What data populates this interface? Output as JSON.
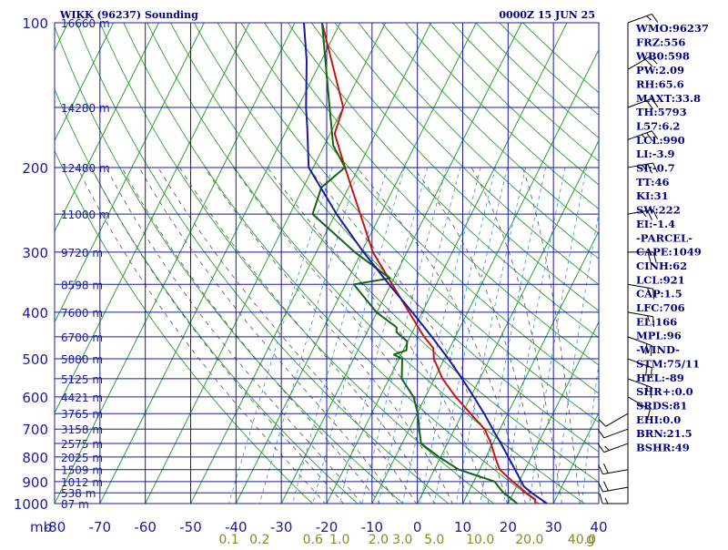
{
  "colors": {
    "grid": "#1a1aa0",
    "dry_adiabat": "#2ea02e",
    "moist_adiabat": "#555555",
    "mixing_ratio": "#3a8fe0",
    "temperature": "#c81414",
    "dewpoint": "#146414",
    "parcel": "#1a1aa0",
    "wind": "#000000",
    "text": "#000080",
    "mixing_label": "#8a8a20"
  },
  "header": {
    "title": "WIKK (96237) Sounding",
    "time": "0000Z 15 JUN 25"
  },
  "indices": [
    "WMO:96237",
    "FRZ:556",
    "WB0:598",
    "PW:2.09",
    "RH:65.6",
    "MAXT:33.8",
    "TH:5793",
    "L57:6.2",
    "LCL:990",
    "LI:-3.9",
    "SI:-0.7",
    "TT:46",
    "KI:31",
    "SW:222",
    "EI:-1.4",
    "-PARCEL-",
    "CAPE:1049",
    "CINH:62",
    "LCL:921",
    "CAP:1.5",
    "LFC:706",
    "EL:166",
    "MPL:96",
    "-WIND-",
    "STM:75/11",
    "HEL:-89",
    "SHR+:0.0",
    "SRDS:81",
    "EHI:0.0",
    "BRN:21.5",
    "BSHR:49"
  ],
  "chart_data": {
    "type": "line",
    "title": "WIKK (96237) Sounding",
    "xlabel": "",
    "ylabel": "mb",
    "xlim": [
      -80,
      40
    ],
    "ylim": [
      1000,
      100
    ],
    "y_scale": "log-pressure",
    "grid": true,
    "temperature_ticks": [
      -80,
      -70,
      -60,
      -50,
      -40,
      -30,
      -20,
      -10,
      0,
      10,
      20,
      30,
      40
    ],
    "temperature_tick_labels": [
      "-80",
      "-70",
      "-60",
      "-50",
      "-40",
      "-30",
      "-20",
      "-10",
      "0",
      "10",
      "20",
      "30",
      "40"
    ],
    "pressure_ticks": [
      100,
      200,
      300,
      400,
      500,
      600,
      700,
      800,
      900,
      1000
    ],
    "pressure_tick_labels": [
      "100",
      "200",
      "300",
      "400",
      "500",
      "600",
      "700",
      "800",
      "900",
      "1000"
    ],
    "y_unit_label": "mb",
    "minor_pressure_lines": [
      150,
      250,
      350,
      450,
      550,
      650,
      750,
      850,
      950
    ],
    "height_labels": [
      {
        "p": 100,
        "label": "16660 m"
      },
      {
        "p": 150,
        "label": "14280 m"
      },
      {
        "p": 200,
        "label": "12480 m"
      },
      {
        "p": 250,
        "label": "11000 m"
      },
      {
        "p": 300,
        "label": "9720 m"
      },
      {
        "p": 350,
        "label": "8598 m"
      },
      {
        "p": 400,
        "label": "7600 m"
      },
      {
        "p": 450,
        "label": "6700 m"
      },
      {
        "p": 500,
        "label": "5880 m"
      },
      {
        "p": 550,
        "label": "5125 m"
      },
      {
        "p": 600,
        "label": "4421 m"
      },
      {
        "p": 650,
        "label": "3765 m"
      },
      {
        "p": 700,
        "label": "3158 m"
      },
      {
        "p": 750,
        "label": "2575 m"
      },
      {
        "p": 800,
        "label": "2025 m"
      },
      {
        "p": 850,
        "label": "1509 m"
      },
      {
        "p": 900,
        "label": "1012 m"
      },
      {
        "p": 950,
        "label": "538 m"
      },
      {
        "p": 1000,
        "label": "87 m"
      }
    ],
    "mixing_ratio_values": [
      0.1,
      0.2,
      0.6,
      1.0,
      2.0,
      3.0,
      5.0,
      10.0,
      20.0,
      40.0
    ],
    "mixing_ratio_labels": [
      "0.1",
      "0.2",
      "0.6",
      "1.0",
      "2.0",
      "3.0",
      "5.0",
      "10.0",
      "20.0",
      "40.0"
    ],
    "mixing_ratio_unit": "g",
    "series": [
      {
        "key": "temperature",
        "p": [
          1006,
          1000,
          980,
          950,
          925,
          900,
          850,
          800,
          750,
          700,
          650,
          600,
          550,
          500,
          475,
          450,
          400,
          350,
          300,
          250,
          200,
          170,
          150,
          100
        ],
        "t": [
          25.6,
          26.0,
          25.5,
          22.8,
          20.8,
          18.6,
          14.4,
          12.0,
          9.6,
          6.6,
          1.8,
          -3.3,
          -8.2,
          -12.3,
          -13.6,
          -16.9,
          -22.9,
          -29.7,
          -37.5,
          -44.5,
          -53.0,
          -59.0,
          -60.0,
          -74.0
        ]
      },
      {
        "key": "dewpoint",
        "p": [
          1006,
          1000,
          975,
          950,
          925,
          900,
          850,
          800,
          750,
          700,
          650,
          600,
          550,
          500,
          490,
          480,
          460,
          440,
          430,
          400,
          350,
          340,
          300,
          250,
          220,
          200,
          180,
          150,
          100
        ],
        "t": [
          21.6,
          22.0,
          20.0,
          17.8,
          16.2,
          14.6,
          5.4,
          -0.4,
          -5.8,
          -7.8,
          -9.8,
          -12.6,
          -17.2,
          -19.3,
          -21.6,
          -19.3,
          -20.1,
          -23.5,
          -24.0,
          -30.1,
          -38.2,
          -30.9,
          -41.5,
          -55.0,
          -56.0,
          -53.0,
          -58.0,
          -63.0,
          -74.0
        ]
      },
      {
        "key": "parcel",
        "p": [
          1000,
          950,
          921,
          900,
          850,
          800,
          750,
          706,
          700,
          650,
          600,
          550,
          500,
          450,
          400,
          350,
          300,
          250,
          200,
          166,
          150,
          120,
          100
        ],
        "t": [
          28.6,
          24.0,
          21.6,
          20.5,
          17.8,
          14.9,
          11.8,
          8.8,
          8.4,
          4.8,
          0.7,
          -3.9,
          -9.1,
          -15.2,
          -22.2,
          -30.4,
          -39.6,
          -49.7,
          -61.0,
          -65.6,
          -68.2,
          -73.2,
          -78.0
        ]
      }
    ],
    "wind": [
      {
        "p": 1000,
        "dir": 270,
        "spd": 15
      },
      {
        "p": 925,
        "dir": 260,
        "spd": 20
      },
      {
        "p": 850,
        "dir": 260,
        "spd": 20
      },
      {
        "p": 750,
        "dir": 250,
        "spd": 15
      },
      {
        "p": 700,
        "dir": 250,
        "spd": 10
      },
      {
        "p": 650,
        "dir": 240,
        "spd": 10
      },
      {
        "p": 600,
        "dir": 120,
        "spd": 10
      },
      {
        "p": 550,
        "dir": 110,
        "spd": 15
      },
      {
        "p": 500,
        "dir": 110,
        "spd": 20
      },
      {
        "p": 450,
        "dir": 110,
        "spd": 20
      },
      {
        "p": 400,
        "dir": 100,
        "spd": 15
      },
      {
        "p": 350,
        "dir": 100,
        "spd": 15
      },
      {
        "p": 300,
        "dir": 90,
        "spd": 20
      },
      {
        "p": 250,
        "dir": 80,
        "spd": 25
      },
      {
        "p": 200,
        "dir": 80,
        "spd": 25
      },
      {
        "p": 175,
        "dir": 70,
        "spd": 25
      },
      {
        "p": 150,
        "dir": 70,
        "spd": 20
      },
      {
        "p": 125,
        "dir": 60,
        "spd": 20
      },
      {
        "p": 100,
        "dir": 70,
        "spd": 15
      }
    ]
  }
}
